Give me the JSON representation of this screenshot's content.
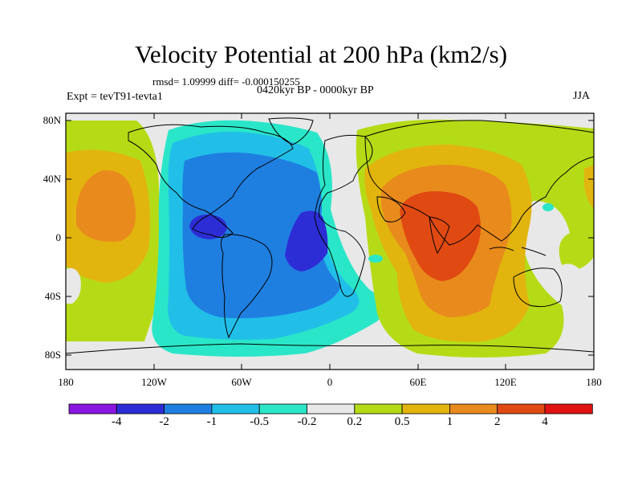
{
  "title": "Velocity Potential at 200 hPa (km2/s)",
  "stats": "rmsd= 1.09999 diff= -0.000150255",
  "period": "0420kyr BP - 0000kyr BP",
  "experiment": "Expt = tevT91-tevta1",
  "season": "JJA",
  "y_axis": {
    "labels": [
      "80N",
      "40N",
      "0",
      "40S",
      "80S"
    ]
  },
  "x_axis": {
    "labels": [
      "180",
      "120W",
      "60W",
      "0",
      "60E",
      "120E",
      "180"
    ]
  },
  "colorbar": {
    "labels": [
      "-4",
      "-2",
      "-1",
      "-0.5",
      "-0.2",
      "0.2",
      "0.5",
      "1",
      "2",
      "4"
    ],
    "colors": [
      "#8a17e0",
      "#2d2dd6",
      "#1f7fe0",
      "#21bfe8",
      "#2ae6c8",
      "#e8e8e8",
      "#b5db16",
      "#e2b40e",
      "#e88a1c",
      "#e04a12",
      "#e01212"
    ]
  }
}
